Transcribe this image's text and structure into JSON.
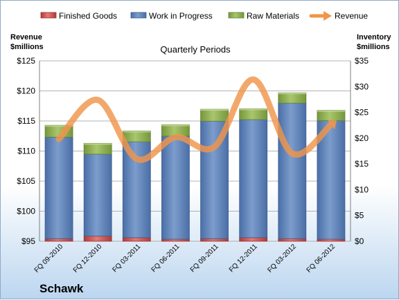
{
  "chart_data": {
    "type": "bar",
    "stacked": true,
    "subtitle": "Quarterly Periods",
    "company": "Schawk",
    "y_left_label": [
      "Revenue",
      "$millions"
    ],
    "y_right_label": [
      "Inventory",
      "$millions"
    ],
    "y_left_range": [
      95,
      125
    ],
    "y_left_ticks": [
      "$95",
      "$100",
      "$105",
      "$110",
      "$115",
      "$120",
      "$125"
    ],
    "y_left_tick_values": [
      95,
      100,
      105,
      110,
      115,
      120,
      125
    ],
    "y_right_range": [
      0,
      35
    ],
    "y_right_ticks": [
      "$0",
      "$5",
      "$10",
      "$15",
      "$20",
      "$25",
      "$30",
      "$35"
    ],
    "y_right_tick_values": [
      0,
      5,
      10,
      15,
      20,
      25,
      30,
      35
    ],
    "grid": true,
    "legend_position": "top",
    "categories": [
      "FQ 09-2010",
      "FQ 12-2010",
      "FQ 03-2011",
      "FQ 06-2011",
      "FQ 09-2011",
      "FQ 12-2011",
      "FQ 03-2012",
      "FQ 06-2012"
    ],
    "series": [
      {
        "name": "Finished Goods",
        "axis": "right",
        "kind": "bar",
        "color": "#c0504d",
        "values": [
          0.5,
          1.0,
          0.7,
          0.4,
          0.5,
          0.7,
          0.5,
          0.4
        ]
      },
      {
        "name": "Work in Progress",
        "axis": "right",
        "kind": "bar",
        "color": "#5b7fb4",
        "values": [
          19.7,
          15.9,
          18.6,
          20.0,
          22.8,
          22.9,
          26.3,
          23.0
        ]
      },
      {
        "name": "Raw Materials",
        "axis": "right",
        "kind": "bar",
        "color": "#90b050",
        "values": [
          2.3,
          2.1,
          2.1,
          2.2,
          2.3,
          2.1,
          2.0,
          2.0
        ]
      },
      {
        "name": "Revenue",
        "axis": "left",
        "kind": "line",
        "color": "#f0954a",
        "values": [
          112.0,
          118.5,
          108.7,
          112.3,
          110.7,
          121.9,
          109.6,
          114.4
        ]
      }
    ]
  }
}
